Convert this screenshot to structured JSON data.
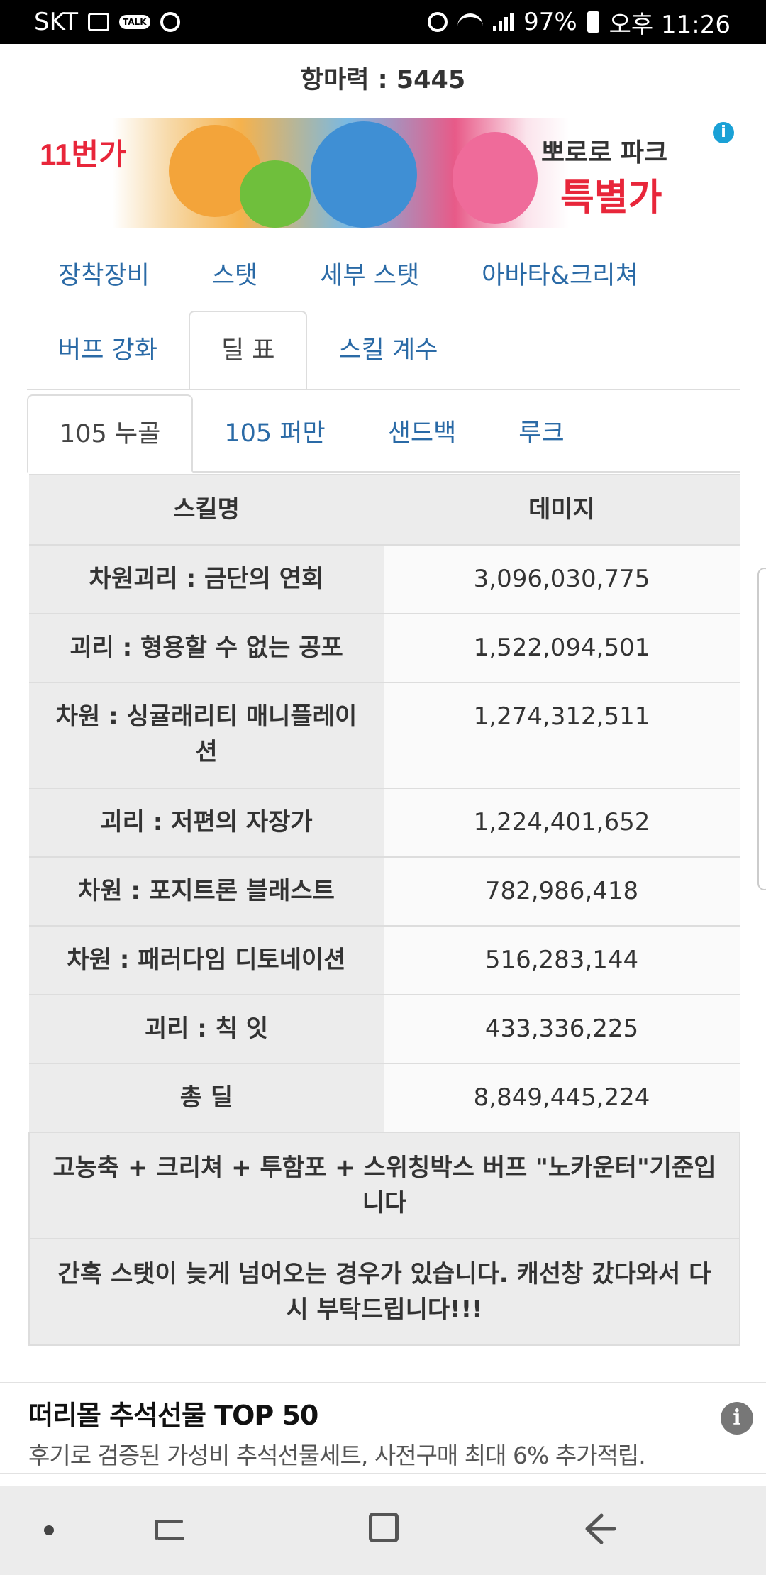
{
  "status_bar": {
    "carrier": "SKT",
    "talk_badge": "TALK",
    "battery": "97%",
    "time": "오후 11:26"
  },
  "resistance": {
    "text": "항마력 : 5445"
  },
  "ad_banner": {
    "logo": "11번가",
    "title": "뽀로로 파크",
    "subtitle": "특별가"
  },
  "main_tabs": [
    {
      "label": "장착장비"
    },
    {
      "label": "스탯"
    },
    {
      "label": "세부 스탯"
    },
    {
      "label": "아바타&크리쳐"
    },
    {
      "label": "버프 강화"
    },
    {
      "label": "딜 표"
    },
    {
      "label": "스킬 계수"
    }
  ],
  "sub_tabs": [
    {
      "label": "105 누골"
    },
    {
      "label": "105 퍼만"
    },
    {
      "label": "샌드백"
    },
    {
      "label": "루크"
    }
  ],
  "table": {
    "headers": [
      "스킬명",
      "데미지"
    ],
    "rows": [
      {
        "skill": "차원괴리 : 금단의 연회",
        "damage": "3,096,030,775"
      },
      {
        "skill": "괴리 : 형용할 수 없는 공포",
        "damage": "1,522,094,501"
      },
      {
        "skill": "차원 : 싱귤래리티 매니플레이션",
        "damage": "1,274,312,511"
      },
      {
        "skill": "괴리 : 저편의 자장가",
        "damage": "1,224,401,652"
      },
      {
        "skill": "차원 : 포지트론 블래스트",
        "damage": "782,986,418"
      },
      {
        "skill": "차원 : 패러다임 디토네이션",
        "damage": "516,283,144"
      },
      {
        "skill": "괴리 : 칙 잇",
        "damage": "433,336,225"
      },
      {
        "skill": "총 딜",
        "damage": "8,849,445,224"
      }
    ],
    "notes": [
      "고농축 + 크리쳐 + 투함포 + 스위칭박스 버프 \"노카운터\"기준입니다",
      "간혹 스탯이 늦게 넘어오는 경우가 있습니다. 캐선창 갔다와서 다시 부탁드립니다!!!"
    ]
  },
  "bottom_ad": {
    "title": "떠리몰 추석선물 TOP 50",
    "description": "후기로 검증된 가성비 추석선물세트, 사전구매 최대 6% 추가적립."
  }
}
